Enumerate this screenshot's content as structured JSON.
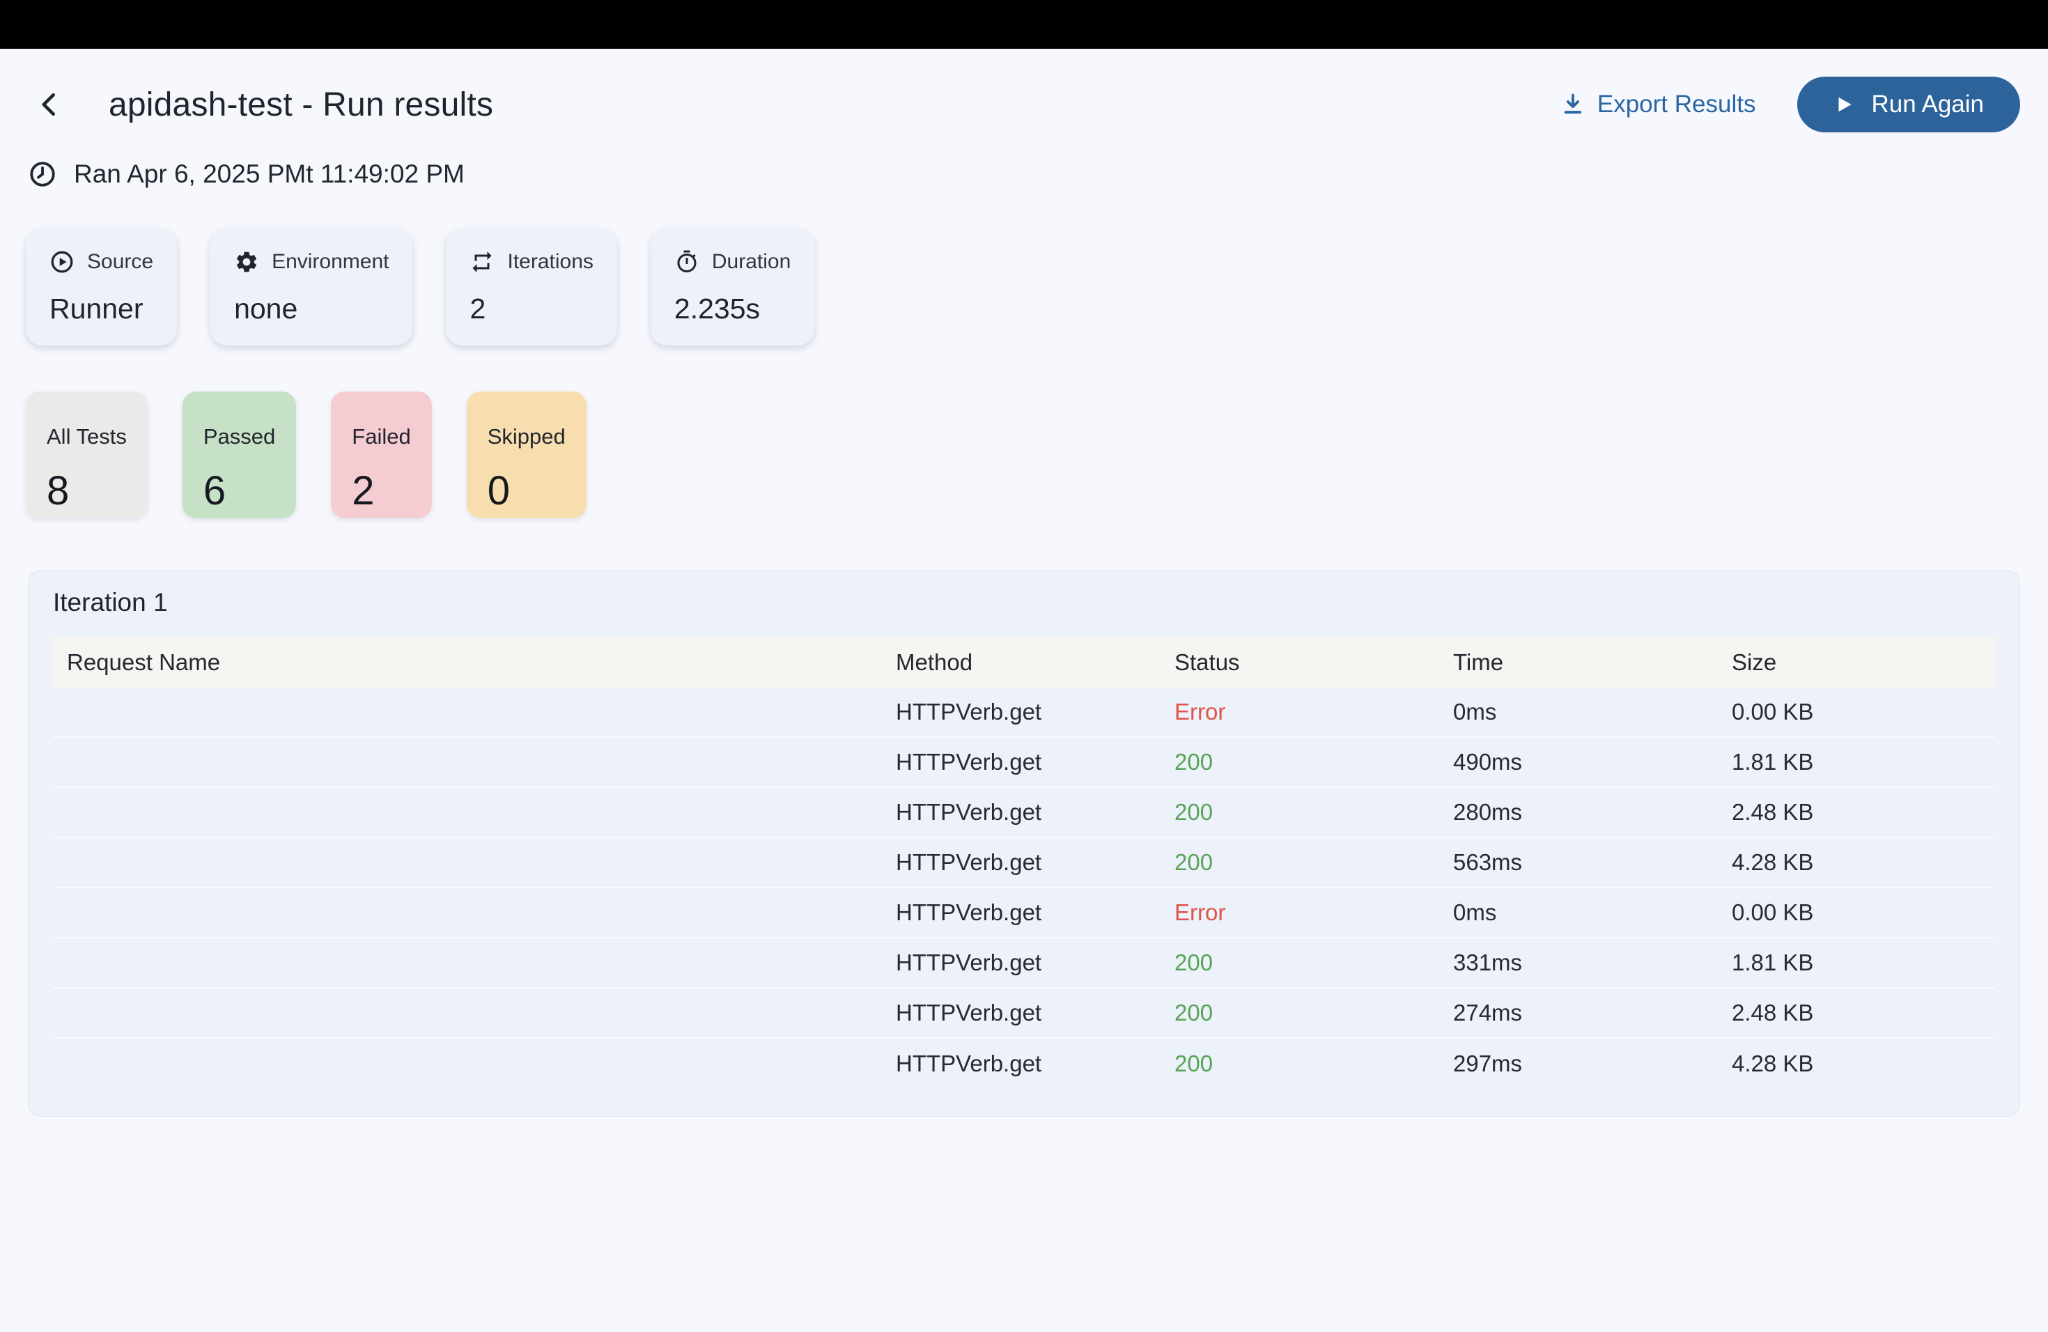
{
  "header": {
    "title": "apidash-test - Run results",
    "export_label": "Export Results",
    "run_again_label": "Run Again"
  },
  "run_meta": {
    "timestamp": "Ran Apr 6, 2025 PMt 11:49:02 PM"
  },
  "info_cards": [
    {
      "icon": "play-circle-icon",
      "label": "Source",
      "value": "Runner"
    },
    {
      "icon": "gear-icon",
      "label": "Environment",
      "value": "none"
    },
    {
      "icon": "repeat-icon",
      "label": "Iterations",
      "value": "2"
    },
    {
      "icon": "stopwatch-icon",
      "label": "Duration",
      "value": "2.235s"
    }
  ],
  "summary_cards": [
    {
      "id": "all-tests",
      "label": "All Tests",
      "value": "8",
      "bg": "#eaeae8"
    },
    {
      "id": "passed",
      "label": "Passed",
      "value": "6",
      "bg": "#c6e1c6"
    },
    {
      "id": "failed",
      "label": "Failed",
      "value": "2",
      "bg": "#f5ccd2"
    },
    {
      "id": "skipped",
      "label": "Skipped",
      "value": "0",
      "bg": "#f8deae"
    }
  ],
  "iteration": {
    "title": "Iteration 1",
    "columns": [
      "Request Name",
      "Method",
      "Status",
      "Time",
      "Size"
    ],
    "rows": [
      {
        "request_name": "",
        "method": "HTTPVerb.get",
        "status": "Error",
        "status_type": "error",
        "time": "0ms",
        "size": "0.00 KB"
      },
      {
        "request_name": "",
        "method": "HTTPVerb.get",
        "status": "200",
        "status_type": "ok",
        "time": "490ms",
        "size": "1.81 KB"
      },
      {
        "request_name": "",
        "method": "HTTPVerb.get",
        "status": "200",
        "status_type": "ok",
        "time": "280ms",
        "size": "2.48 KB"
      },
      {
        "request_name": "",
        "method": "HTTPVerb.get",
        "status": "200",
        "status_type": "ok",
        "time": "563ms",
        "size": "4.28 KB"
      },
      {
        "request_name": "",
        "method": "HTTPVerb.get",
        "status": "Error",
        "status_type": "error",
        "time": "0ms",
        "size": "0.00 KB"
      },
      {
        "request_name": "",
        "method": "HTTPVerb.get",
        "status": "200",
        "status_type": "ok",
        "time": "331ms",
        "size": "1.81 KB"
      },
      {
        "request_name": "",
        "method": "HTTPVerb.get",
        "status": "200",
        "status_type": "ok",
        "time": "274ms",
        "size": "2.48 KB"
      },
      {
        "request_name": "",
        "method": "HTTPVerb.get",
        "status": "200",
        "status_type": "ok",
        "time": "297ms",
        "size": "4.28 KB"
      }
    ]
  },
  "colors": {
    "accent_blue": "#2d639b",
    "link_blue": "#2b66a3",
    "error_red": "#df5449",
    "success_green": "#57a457",
    "page_bg": "#f7f8fd",
    "panel_bg": "#edf1f9",
    "table_header_bg": "#f5f5f1",
    "top_bar": "#000000"
  }
}
